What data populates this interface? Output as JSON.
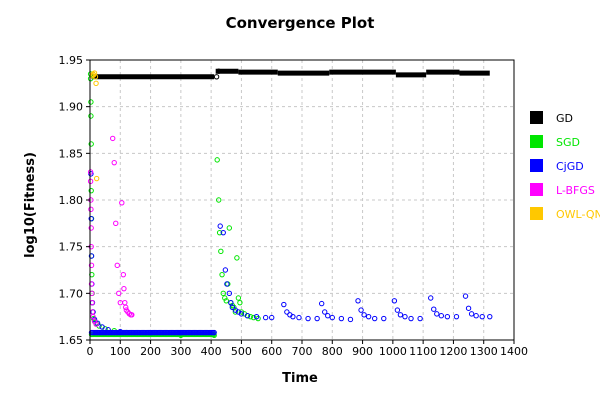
{
  "chart_data": {
    "type": "scatter",
    "title": "Convergence Plot",
    "xlabel": "Time",
    "ylabel": "log10(Fitness)",
    "xlim": [
      0,
      1400
    ],
    "ylim": [
      1.65,
      1.95
    ],
    "xticks": [
      0,
      100,
      200,
      300,
      400,
      500,
      600,
      700,
      800,
      900,
      1000,
      1100,
      1200,
      1300,
      1400
    ],
    "yticks": [
      1.65,
      1.7,
      1.75,
      1.8,
      1.85,
      1.9,
      1.95
    ],
    "grid": true,
    "legend_position": "right",
    "series": [
      {
        "name": "GD",
        "color": "#000000",
        "segments": [
          {
            "x0": 5,
            "x1": 410,
            "y": 1.932
          },
          {
            "x0": 415,
            "x1": 490,
            "y": 1.938
          },
          {
            "x0": 490,
            "x1": 620,
            "y": 1.937
          },
          {
            "x0": 620,
            "x1": 790,
            "y": 1.936
          },
          {
            "x0": 790,
            "x1": 1010,
            "y": 1.937
          },
          {
            "x0": 1010,
            "x1": 1110,
            "y": 1.934
          },
          {
            "x0": 1110,
            "x1": 1220,
            "y": 1.937
          },
          {
            "x0": 1220,
            "x1": 1320,
            "y": 1.936
          }
        ],
        "points": [
          [
            418,
            1.932
          ],
          [
            425,
            1.938
          ]
        ]
      },
      {
        "name": "SGD",
        "color": "#00e600",
        "points": [
          [
            2,
            1.935
          ],
          [
            2,
            1.93
          ],
          [
            3,
            1.905
          ],
          [
            3,
            1.89
          ],
          [
            4,
            1.86
          ],
          [
            4,
            1.81
          ],
          [
            5,
            1.78
          ],
          [
            5,
            1.74
          ],
          [
            6,
            1.72
          ],
          [
            7,
            1.7
          ],
          [
            8,
            1.69
          ],
          [
            10,
            1.68
          ],
          [
            12,
            1.673
          ],
          [
            15,
            1.67
          ],
          [
            20,
            1.668
          ],
          [
            30,
            1.665
          ],
          [
            50,
            1.662
          ],
          [
            80,
            1.66
          ],
          [
            120,
            1.658
          ],
          [
            200,
            1.656
          ],
          [
            300,
            1.655
          ],
          [
            410,
            1.655
          ],
          [
            420,
            1.843
          ],
          [
            425,
            1.8
          ],
          [
            428,
            1.765
          ],
          [
            432,
            1.745
          ],
          [
            436,
            1.72
          ],
          [
            440,
            1.7
          ],
          [
            445,
            1.695
          ],
          [
            450,
            1.692
          ],
          [
            455,
            1.71
          ],
          [
            460,
            1.77
          ],
          [
            465,
            1.69
          ],
          [
            470,
            1.687
          ],
          [
            475,
            1.685
          ],
          [
            480,
            1.68
          ],
          [
            485,
            1.738
          ],
          [
            490,
            1.695
          ],
          [
            495,
            1.69
          ],
          [
            500,
            1.68
          ],
          [
            510,
            1.678
          ],
          [
            520,
            1.676
          ],
          [
            530,
            1.675
          ],
          [
            540,
            1.674
          ],
          [
            555,
            1.673
          ]
        ],
        "trail": {
          "x0": 5,
          "x1": 410,
          "y": 1.656
        }
      },
      {
        "name": "CjGD",
        "color": "#0000ff",
        "points": [
          [
            3,
            1.828
          ],
          [
            4,
            1.78
          ],
          [
            5,
            1.74
          ],
          [
            6,
            1.71
          ],
          [
            8,
            1.69
          ],
          [
            10,
            1.68
          ],
          [
            15,
            1.672
          ],
          [
            25,
            1.668
          ],
          [
            40,
            1.664
          ],
          [
            60,
            1.661
          ],
          [
            100,
            1.659
          ],
          [
            200,
            1.658
          ],
          [
            300,
            1.658
          ],
          [
            410,
            1.658
          ],
          [
            430,
            1.772
          ],
          [
            440,
            1.765
          ],
          [
            447,
            1.725
          ],
          [
            452,
            1.71
          ],
          [
            460,
            1.7
          ],
          [
            465,
            1.69
          ],
          [
            470,
            1.685
          ],
          [
            480,
            1.682
          ],
          [
            490,
            1.68
          ],
          [
            500,
            1.678
          ],
          [
            520,
            1.676
          ],
          [
            550,
            1.675
          ],
          [
            580,
            1.674
          ],
          [
            600,
            1.674
          ],
          [
            640,
            1.688
          ],
          [
            650,
            1.68
          ],
          [
            660,
            1.677
          ],
          [
            670,
            1.675
          ],
          [
            690,
            1.674
          ],
          [
            720,
            1.673
          ],
          [
            750,
            1.673
          ],
          [
            765,
            1.689
          ],
          [
            775,
            1.68
          ],
          [
            785,
            1.676
          ],
          [
            800,
            1.674
          ],
          [
            830,
            1.673
          ],
          [
            860,
            1.672
          ],
          [
            885,
            1.692
          ],
          [
            895,
            1.682
          ],
          [
            905,
            1.677
          ],
          [
            920,
            1.675
          ],
          [
            940,
            1.673
          ],
          [
            970,
            1.673
          ],
          [
            1005,
            1.692
          ],
          [
            1015,
            1.682
          ],
          [
            1025,
            1.677
          ],
          [
            1040,
            1.675
          ],
          [
            1060,
            1.673
          ],
          [
            1090,
            1.673
          ],
          [
            1125,
            1.695
          ],
          [
            1135,
            1.683
          ],
          [
            1145,
            1.678
          ],
          [
            1160,
            1.676
          ],
          [
            1180,
            1.675
          ],
          [
            1210,
            1.675
          ],
          [
            1240,
            1.697
          ],
          [
            1250,
            1.684
          ],
          [
            1260,
            1.678
          ],
          [
            1275,
            1.676
          ],
          [
            1295,
            1.675
          ],
          [
            1320,
            1.675
          ]
        ],
        "trail": {
          "x0": 5,
          "x1": 410,
          "y": 1.658
        }
      },
      {
        "name": "L-BFGS",
        "color": "#ff00ff",
        "points": [
          [
            2,
            1.83
          ],
          [
            2,
            1.82
          ],
          [
            3,
            1.8
          ],
          [
            3,
            1.79
          ],
          [
            4,
            1.77
          ],
          [
            4,
            1.75
          ],
          [
            5,
            1.73
          ],
          [
            5,
            1.71
          ],
          [
            6,
            1.7
          ],
          [
            7,
            1.69
          ],
          [
            8,
            1.68
          ],
          [
            10,
            1.675
          ],
          [
            15,
            1.67
          ],
          [
            20,
            1.667
          ],
          [
            75,
            1.866
          ],
          [
            80,
            1.84
          ],
          [
            85,
            1.775
          ],
          [
            90,
            1.73
          ],
          [
            95,
            1.7
          ],
          [
            100,
            1.69
          ],
          [
            105,
            1.797
          ],
          [
            110,
            1.72
          ],
          [
            112,
            1.705
          ],
          [
            115,
            1.69
          ],
          [
            118,
            1.685
          ],
          [
            120,
            1.682
          ],
          [
            125,
            1.68
          ],
          [
            130,
            1.678
          ],
          [
            135,
            1.677
          ],
          [
            138,
            1.677
          ]
        ]
      },
      {
        "name": "OWL-QN",
        "color": "#ffc800",
        "points": [
          [
            8,
            1.933
          ],
          [
            10,
            1.935
          ],
          [
            12,
            1.934
          ],
          [
            15,
            1.936
          ],
          [
            18,
            1.932
          ],
          [
            20,
            1.925
          ],
          [
            22,
            1.823
          ]
        ]
      }
    ]
  }
}
